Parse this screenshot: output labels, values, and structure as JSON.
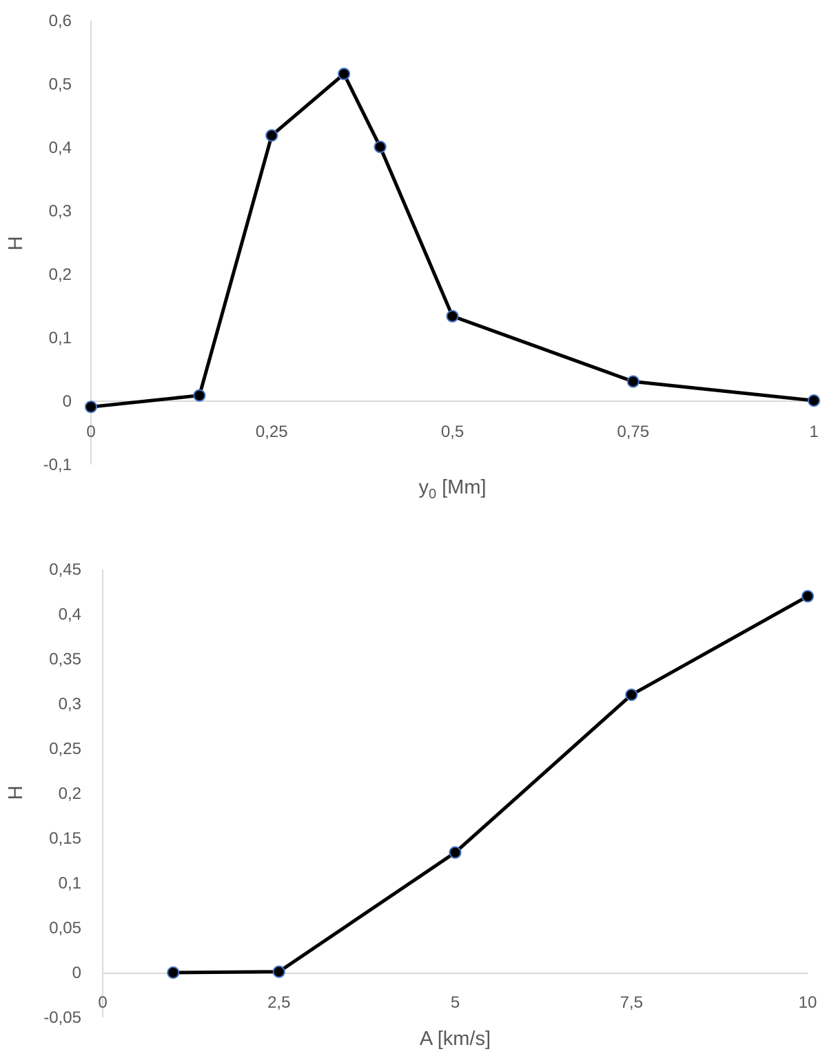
{
  "chart_data": [
    {
      "type": "line",
      "title": "",
      "xlabel": "y",
      "xlabel_sub": "0",
      "xlabel_unit": " [Mm]",
      "ylabel": "H",
      "xlim": [
        0,
        1
      ],
      "ylim": [
        -0.1,
        0.6
      ],
      "xticks": [
        0,
        0.25,
        0.5,
        0.75,
        1
      ],
      "xtick_labels": [
        "0",
        "0,25",
        "0,5",
        "0,75",
        "1"
      ],
      "yticks": [
        -0.1,
        0,
        0.1,
        0.2,
        0.3,
        0.4,
        0.5,
        0.6
      ],
      "ytick_labels": [
        "-0,1",
        "0",
        "0,1",
        "0,2",
        "0,3",
        "0,4",
        "0,5",
        "0,6"
      ],
      "grid": false,
      "series": [
        {
          "x": [
            0,
            0.15,
            0.25,
            0.35,
            0.4,
            0.5,
            0.75,
            1
          ],
          "y": [
            -0.009,
            0.009,
            0.419,
            0.516,
            0.401,
            0.134,
            0.031,
            0.001
          ],
          "color": "#000000",
          "marker_edge": "#4472c4"
        }
      ]
    },
    {
      "type": "line",
      "title": "",
      "xlabel": "A [km/s]",
      "xlabel_sub": "",
      "xlabel_unit": "",
      "ylabel": "H",
      "xlim": [
        0,
        10
      ],
      "ylim": [
        -0.05,
        0.45
      ],
      "xticks": [
        0,
        2.5,
        5,
        7.5,
        10
      ],
      "xtick_labels": [
        "0",
        "2,5",
        "5",
        "7,5",
        "10"
      ],
      "yticks": [
        -0.05,
        0,
        0.05,
        0.1,
        0.15,
        0.2,
        0.25,
        0.3,
        0.35,
        0.4,
        0.45
      ],
      "ytick_labels": [
        "-0,05",
        "0",
        "0,05",
        "0,1",
        "0,15",
        "0,2",
        "0,25",
        "0,3",
        "0,35",
        "0,4",
        "0,45"
      ],
      "grid": false,
      "series": [
        {
          "x": [
            1,
            2.5,
            5,
            7.5,
            10
          ],
          "y": [
            0.0,
            0.001,
            0.134,
            0.31,
            0.42
          ],
          "color": "#000000",
          "marker_edge": "#4472c4"
        }
      ]
    }
  ]
}
